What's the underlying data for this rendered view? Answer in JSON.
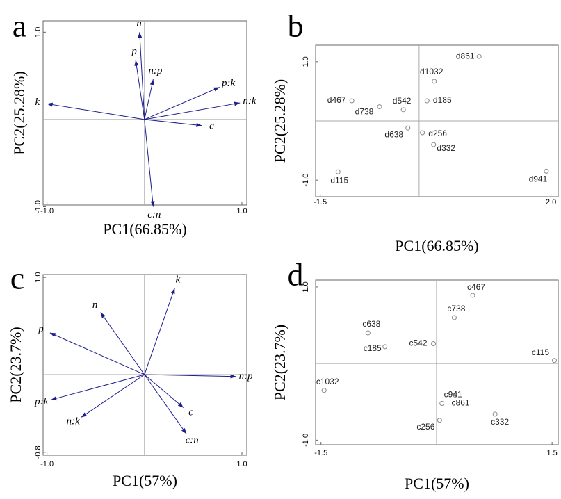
{
  "chart_data": [
    {
      "type": "biplot",
      "panel": "a",
      "xlabel": "PC1(66.85%)",
      "ylabel": "PC2(25.28%)",
      "labels": [
        "n",
        "p",
        "n:p",
        "p:k",
        "n:k",
        "k",
        "c",
        "c:n"
      ],
      "x": [
        -0.05,
        -0.09,
        0.09,
        0.77,
        0.98,
        -1.0,
        0.59,
        0.09
      ],
      "values": [
        1.0,
        0.68,
        0.46,
        0.37,
        0.19,
        0.18,
        -0.07,
        -1.0
      ],
      "xlim": [
        -1.04,
        1.05
      ],
      "ylim": [
        -0.98,
        1.13
      ],
      "xticks": [
        {
          "value": -1,
          "label": "-1.0"
        },
        {
          "value": 1,
          "label": "1.0"
        }
      ],
      "yticks": [
        {
          "value": -1,
          "label": "-1.0"
        },
        {
          "value": 1,
          "label": "1.0"
        }
      ],
      "color": "#1c1c8c"
    },
    {
      "type": "scatter",
      "panel": "b",
      "xlabel": "PC1(66.85%)",
      "ylabel": "PC2(25.28%)",
      "labels": [
        "d861",
        "d1032",
        "d185",
        "d467",
        "d738",
        "d542",
        "d638",
        "d256",
        "d332",
        "d115",
        "d941"
      ],
      "x": [
        0.91,
        0.23,
        0.12,
        -1.02,
        -0.6,
        -0.24,
        -0.17,
        0.05,
        0.22,
        -1.23,
        1.93
      ],
      "values": [
        1.09,
        0.67,
        0.34,
        0.34,
        0.24,
        0.19,
        -0.12,
        -0.2,
        -0.4,
        -0.86,
        -0.85
      ],
      "xlim": [
        -1.57,
        2.11
      ],
      "ylim": [
        -1.28,
        1.28
      ],
      "xticks": [
        {
          "value": -1.5,
          "label": "-1.5"
        },
        {
          "value": 2,
          "label": "2.0"
        }
      ],
      "yticks": [
        {
          "value": -1,
          "label": "-1.0"
        },
        {
          "value": 1,
          "label": "1.0"
        }
      ],
      "color": "#888888"
    },
    {
      "type": "biplot",
      "panel": "c",
      "xlabel": "PC1(57%)",
      "ylabel": "PC2(23.7%)",
      "labels": [
        "k",
        "n",
        "p",
        "n:p",
        "p:k",
        "n:k",
        "c",
        "c:n"
      ],
      "x": [
        0.31,
        -0.45,
        -0.97,
        0.94,
        -0.96,
        -0.65,
        0.4,
        0.43
      ],
      "values": [
        0.89,
        0.64,
        0.43,
        -0.02,
        -0.26,
        -0.44,
        -0.34,
        -0.61
      ],
      "xlim": [
        -1.04,
        1.05
      ],
      "ylim": [
        -0.83,
        1.03
      ],
      "xticks": [
        {
          "value": -1,
          "label": "-1.0"
        },
        {
          "value": 1,
          "label": "1.0"
        }
      ],
      "yticks": [
        {
          "value": -0.8,
          "label": "-0.8"
        },
        {
          "value": 1,
          "label": "1.0"
        }
      ],
      "color": "#1c1c8c"
    },
    {
      "type": "scatter",
      "panel": "d",
      "xlabel": "PC1(57%)",
      "ylabel": "PC2(23.7%)",
      "labels": [
        "c467",
        "c738",
        "c638",
        "c185",
        "c542",
        "c115",
        "c1032",
        "c861",
        "c941",
        "c332",
        "c256"
      ],
      "x": [
        0.47,
        0.23,
        -0.89,
        -0.67,
        -0.04,
        1.53,
        -1.46,
        0.24,
        0.07,
        0.76,
        0.04
      ],
      "values": [
        0.89,
        0.6,
        0.4,
        0.22,
        0.26,
        0.04,
        -0.35,
        -0.41,
        -0.52,
        -0.66,
        -0.74
      ],
      "xlim": [
        -1.57,
        1.58
      ],
      "ylim": [
        -1.06,
        1.09
      ],
      "xticks": [
        {
          "value": -1.5,
          "label": "-1.5"
        },
        {
          "value": 1.5,
          "label": "1.5"
        }
      ],
      "yticks": [
        {
          "value": -1,
          "label": "-1.0"
        },
        {
          "value": 1,
          "label": "1.0"
        }
      ],
      "color": "#888888"
    }
  ]
}
